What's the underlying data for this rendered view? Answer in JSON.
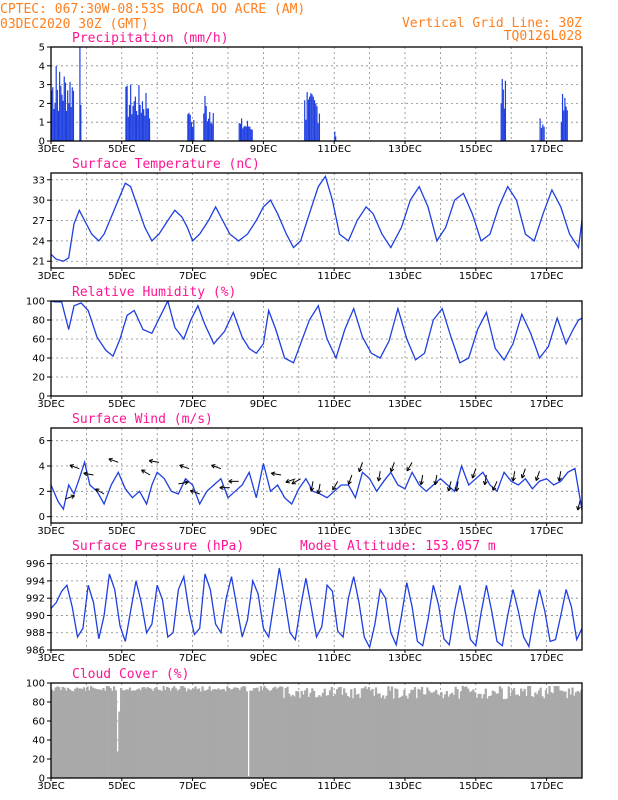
{
  "header": {
    "line1": "CPTEC:   067:30W-08:53S  BOCA DO ACRE (AM)",
    "line2": "03DEC2020 30Z (GMT)",
    "grid_note": "Vertical Grid Line: 30Z",
    "code": "TQ0126L028",
    "altitude": "Model Altitude: 153.057 m"
  },
  "colors": {
    "header": "#ff7f1e",
    "title": "#ff1493",
    "series": "#1f3fe0",
    "cloud": "#a9a9a9"
  },
  "x_labels": [
    "3DEC",
    "5DEC",
    "7DEC",
    "9DEC",
    "11DEC",
    "13DEC",
    "15DEC",
    "17DEC"
  ],
  "chart_data": [
    {
      "type": "bar",
      "title": "Precipitation (mm/h)",
      "ylim": [
        0,
        5
      ],
      "yticks": [
        "0",
        "1",
        "2",
        "3",
        "4",
        "5"
      ],
      "x_range_days": [
        0,
        15
      ],
      "events": [
        {
          "start": 0.0,
          "end": 0.65,
          "peak": 4.0
        },
        {
          "start": 0.8,
          "end": 0.85,
          "peak": 5.0
        },
        {
          "start": 2.1,
          "end": 2.8,
          "peak": 3.0
        },
        {
          "start": 3.85,
          "end": 4.05,
          "peak": 1.5
        },
        {
          "start": 4.3,
          "end": 4.6,
          "peak": 2.4
        },
        {
          "start": 5.3,
          "end": 5.7,
          "peak": 1.2
        },
        {
          "start": 7.15,
          "end": 7.6,
          "peak": 2.6
        },
        {
          "start": 8.0,
          "end": 8.05,
          "peak": 0.5
        },
        {
          "start": 12.7,
          "end": 12.85,
          "peak": 3.3
        },
        {
          "start": 13.8,
          "end": 13.95,
          "peak": 1.2
        },
        {
          "start": 14.4,
          "end": 14.6,
          "peak": 2.5
        }
      ]
    },
    {
      "type": "line",
      "title": "Surface Temperature (nC)",
      "ylim": [
        20,
        34
      ],
      "yticks": [
        "21",
        "24",
        "27",
        "30",
        "33"
      ],
      "x_days": [
        0,
        0.15,
        0.35,
        0.5,
        0.65,
        0.8,
        0.95,
        1.15,
        1.35,
        1.5,
        1.7,
        1.9,
        2.1,
        2.25,
        2.45,
        2.65,
        2.85,
        3.05,
        3.3,
        3.5,
        3.7,
        3.85,
        4.0,
        4.2,
        4.45,
        4.65,
        4.85,
        5.05,
        5.3,
        5.55,
        5.8,
        6.0,
        6.2,
        6.4,
        6.65,
        6.85,
        7.05,
        7.3,
        7.55,
        7.75,
        7.95,
        8.15,
        8.4,
        8.65,
        8.9,
        9.1,
        9.35,
        9.6,
        9.9,
        10.15,
        10.4,
        10.65,
        10.9,
        11.15,
        11.4,
        11.65,
        11.9,
        12.15,
        12.4,
        12.65,
        12.9,
        13.15,
        13.4,
        13.65,
        13.9,
        14.15,
        14.4,
        14.65,
        14.9,
        15.0
      ],
      "values": [
        22,
        21.3,
        21,
        21.5,
        26.5,
        28.5,
        27,
        25,
        24,
        25,
        27.5,
        30,
        32.5,
        32,
        29,
        26,
        24,
        25,
        27,
        28.5,
        27.5,
        26,
        24,
        25,
        27,
        29,
        27,
        25,
        24,
        25,
        27,
        29,
        30,
        28,
        25,
        23,
        24,
        28,
        32,
        33.5,
        30,
        25,
        24,
        27,
        29,
        28,
        25,
        23,
        26,
        30,
        32,
        29,
        24,
        26,
        30,
        31,
        28,
        24,
        25,
        29,
        32,
        30,
        25,
        24,
        28,
        31.5,
        29,
        25,
        23,
        27
      ]
    },
    {
      "type": "line",
      "title": "Relative Humidity (%)",
      "ylim": [
        0,
        100
      ],
      "yticks": [
        "0",
        "20",
        "40",
        "60",
        "80",
        "100"
      ],
      "x_days": [
        0,
        0.1,
        0.3,
        0.5,
        0.65,
        0.85,
        1.05,
        1.3,
        1.55,
        1.75,
        1.95,
        2.15,
        2.35,
        2.6,
        2.85,
        3.1,
        3.3,
        3.5,
        3.75,
        3.95,
        4.15,
        4.35,
        4.6,
        4.9,
        5.15,
        5.4,
        5.6,
        5.8,
        6.0,
        6.15,
        6.35,
        6.6,
        6.85,
        7.05,
        7.3,
        7.55,
        7.8,
        8.05,
        8.3,
        8.55,
        8.8,
        9.05,
        9.3,
        9.55,
        9.8,
        10.05,
        10.3,
        10.55,
        10.8,
        11.05,
        11.3,
        11.55,
        11.8,
        12.05,
        12.3,
        12.55,
        12.8,
        13.05,
        13.3,
        13.55,
        13.8,
        14.05,
        14.3,
        14.55,
        14.75,
        14.9,
        15.0
      ],
      "values": [
        100,
        99,
        99,
        70,
        95,
        98,
        90,
        62,
        48,
        42,
        60,
        85,
        90,
        70,
        66,
        85,
        100,
        72,
        60,
        80,
        95,
        75,
        55,
        68,
        88,
        62,
        50,
        45,
        55,
        90,
        70,
        40,
        35,
        55,
        80,
        95,
        60,
        40,
        70,
        92,
        62,
        45,
        40,
        58,
        92,
        60,
        38,
        45,
        80,
        92,
        62,
        35,
        40,
        70,
        88,
        50,
        38,
        55,
        86,
        66,
        40,
        52,
        82,
        55,
        70,
        80,
        82
      ]
    },
    {
      "type": "line",
      "title": "Surface Wind (m/s)",
      "ylim": [
        -0.5,
        7
      ],
      "yticks": [
        "0",
        "2",
        "4",
        "6"
      ],
      "x_days": [
        0,
        0.2,
        0.35,
        0.5,
        0.65,
        0.8,
        0.95,
        1.1,
        1.3,
        1.5,
        1.7,
        1.9,
        2.1,
        2.3,
        2.5,
        2.7,
        2.85,
        3.0,
        3.2,
        3.4,
        3.6,
        3.8,
        4.0,
        4.2,
        4.4,
        4.6,
        4.8,
        5.0,
        5.2,
        5.4,
        5.6,
        5.8,
        6.0,
        6.2,
        6.4,
        6.6,
        6.8,
        7.0,
        7.2,
        7.4,
        7.6,
        7.8,
        8.0,
        8.2,
        8.4,
        8.6,
        8.8,
        9.0,
        9.2,
        9.4,
        9.6,
        9.8,
        10.0,
        10.2,
        10.4,
        10.6,
        10.8,
        11.0,
        11.2,
        11.4,
        11.6,
        11.8,
        12.0,
        12.2,
        12.4,
        12.6,
        12.8,
        13.0,
        13.2,
        13.4,
        13.6,
        13.8,
        14.0,
        14.2,
        14.4,
        14.6,
        14.8,
        15.0
      ],
      "values": [
        2.5,
        1.2,
        0.6,
        2.5,
        1.8,
        3.0,
        4.3,
        2.5,
        2.0,
        1.0,
        2.5,
        3.5,
        2.2,
        1.5,
        2.0,
        1.0,
        2.5,
        3.5,
        3.0,
        2.0,
        1.8,
        3.0,
        2.5,
        1.0,
        2.0,
        2.5,
        3.0,
        1.5,
        2.0,
        2.5,
        3.5,
        1.5,
        4.2,
        2.0,
        2.5,
        1.5,
        1.0,
        2.2,
        3.0,
        2.0,
        1.8,
        1.5,
        2.0,
        2.5,
        2.5,
        1.5,
        3.5,
        3.0,
        2.0,
        2.8,
        3.5,
        2.5,
        2.2,
        3.5,
        2.5,
        2.0,
        2.5,
        3.0,
        2.5,
        2.0,
        4.0,
        2.5,
        3.0,
        3.5,
        2.5,
        2.0,
        3.5,
        2.8,
        2.5,
        3.0,
        2.2,
        2.8,
        3.0,
        2.5,
        2.8,
        3.5,
        3.8,
        0.5
      ]
    },
    {
      "type": "line",
      "title": "Surface Pressure (hPa)",
      "ylim": [
        986,
        997
      ],
      "yticks": [
        "986",
        "988",
        "990",
        "992",
        "994",
        "996"
      ],
      "x_days": [
        0,
        0.15,
        0.3,
        0.45,
        0.6,
        0.75,
        0.9,
        1.05,
        1.2,
        1.35,
        1.5,
        1.65,
        1.8,
        1.95,
        2.1,
        2.25,
        2.4,
        2.55,
        2.7,
        2.85,
        3.0,
        3.15,
        3.3,
        3.45,
        3.6,
        3.75,
        3.9,
        4.05,
        4.2,
        4.35,
        4.5,
        4.65,
        4.8,
        4.95,
        5.1,
        5.25,
        5.4,
        5.55,
        5.7,
        5.85,
        6.0,
        6.15,
        6.3,
        6.45,
        6.6,
        6.75,
        6.9,
        7.05,
        7.2,
        7.35,
        7.5,
        7.65,
        7.8,
        7.95,
        8.1,
        8.25,
        8.4,
        8.55,
        8.7,
        8.85,
        9.0,
        9.15,
        9.3,
        9.45,
        9.6,
        9.75,
        9.9,
        10.05,
        10.2,
        10.35,
        10.5,
        10.65,
        10.8,
        10.95,
        11.1,
        11.25,
        11.4,
        11.55,
        11.7,
        11.85,
        12.0,
        12.15,
        12.3,
        12.45,
        12.6,
        12.75,
        12.9,
        13.05,
        13.2,
        13.35,
        13.5,
        13.65,
        13.8,
        13.95,
        14.1,
        14.25,
        14.4,
        14.55,
        14.7,
        14.85,
        15.0
      ],
      "values": [
        990.8,
        991.5,
        992.8,
        993.5,
        991,
        987.5,
        988.5,
        993.5,
        991.5,
        987.3,
        990,
        994.8,
        993,
        988.8,
        987,
        990.5,
        994,
        991.5,
        988,
        989,
        993.5,
        991.8,
        987.5,
        988,
        993,
        994.5,
        990.5,
        987.8,
        988.5,
        994.8,
        993,
        989,
        988,
        992,
        994.5,
        991,
        987.5,
        989.5,
        994,
        992.5,
        988.5,
        987.5,
        991.5,
        995.5,
        992,
        988,
        987.2,
        991,
        994.3,
        991,
        987.5,
        988.7,
        993.5,
        992.8,
        988.2,
        987.5,
        992,
        994.5,
        991.5,
        987.5,
        986.3,
        989,
        993,
        992,
        988,
        986.6,
        990,
        993.8,
        991,
        987,
        986.5,
        989.5,
        993.5,
        991.2,
        987.3,
        986.6,
        990.5,
        993.5,
        990.5,
        987.2,
        986.5,
        990.3,
        993.5,
        990.5,
        987,
        986.5,
        990,
        993,
        990.5,
        987.5,
        986.4,
        990,
        993,
        990.5,
        987,
        987.2,
        990,
        993,
        991,
        987.2,
        988.5
      ]
    },
    {
      "type": "bar",
      "title": "Cloud Cover (%)",
      "ylim": [
        0,
        100
      ],
      "yticks": [
        "0",
        "20",
        "40",
        "60",
        "80",
        "100"
      ],
      "base_level": 97,
      "dips": [
        {
          "day": 1.85,
          "value": 28
        },
        {
          "day": 1.92,
          "value": 70
        },
        {
          "day": 5.55,
          "value": 2
        },
        {
          "day": 8.0,
          "value": 88
        },
        {
          "day": 8.4,
          "value": 85
        },
        {
          "day": 9.0,
          "value": 92
        },
        {
          "day": 10.5,
          "value": 88
        }
      ]
    }
  ],
  "wind_vectors": {
    "positions_days": [
      0.4,
      0.8,
      1.2,
      1.5,
      1.9,
      2.8,
      3.05,
      3.6,
      3.9,
      4.2,
      4.8,
      5.05,
      5.3,
      6.5,
      6.9,
      7.05,
      7.4,
      7.6,
      8.1,
      8.5,
      8.8,
      9.3,
      9.7,
      10.2,
      10.5,
      10.9,
      11.3,
      11.5,
      12.0,
      12.3,
      12.6,
      13.1,
      13.4,
      13.8,
      14.4,
      14.95
    ],
    "angles_deg": [
      -20,
      200,
      190,
      210,
      200,
      210,
      190,
      -10,
      200,
      200,
      200,
      180,
      180,
      190,
      160,
      150,
      100,
      100,
      120,
      110,
      110,
      100,
      110,
      120,
      100,
      100,
      105,
      100,
      110,
      100,
      115,
      100,
      110,
      110,
      100,
      105
    ]
  },
  "vertical_grid_days": [
    1,
    2,
    3,
    4,
    5,
    6,
    7,
    8,
    9,
    10,
    11,
    12,
    13,
    14
  ]
}
